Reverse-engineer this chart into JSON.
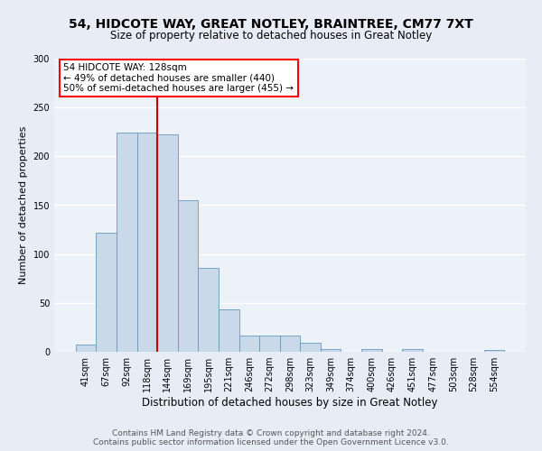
{
  "title1": "54, HIDCOTE WAY, GREAT NOTLEY, BRAINTREE, CM77 7XT",
  "title2": "Size of property relative to detached houses in Great Notley",
  "xlabel": "Distribution of detached houses by size in Great Notley",
  "ylabel": "Number of detached properties",
  "bin_labels": [
    "41sqm",
    "67sqm",
    "92sqm",
    "118sqm",
    "144sqm",
    "169sqm",
    "195sqm",
    "221sqm",
    "246sqm",
    "272sqm",
    "298sqm",
    "323sqm",
    "349sqm",
    "374sqm",
    "400sqm",
    "426sqm",
    "451sqm",
    "477sqm",
    "503sqm",
    "528sqm",
    "554sqm"
  ],
  "bar_heights": [
    7,
    122,
    224,
    224,
    222,
    155,
    86,
    43,
    17,
    17,
    17,
    9,
    3,
    0,
    3,
    0,
    3,
    0,
    0,
    0,
    2
  ],
  "bar_color": "#c9d9ea",
  "bar_edgecolor": "#6699bb",
  "vline_x": 3.5,
  "vline_color": "#cc0000",
  "annotation_text": "54 HIDCOTE WAY: 128sqm\n← 49% of detached houses are smaller (440)\n50% of semi-detached houses are larger (455) →",
  "annotation_box_color": "white",
  "annotation_box_edgecolor": "red",
  "ylim_max": 300,
  "yticks": [
    0,
    50,
    100,
    150,
    200,
    250,
    300
  ],
  "footnote": "Contains HM Land Registry data © Crown copyright and database right 2024.\nContains public sector information licensed under the Open Government Licence v3.0.",
  "bg_color": "#e8edf5",
  "plot_bg_color": "#edf2f8",
  "title1_fontsize": 10,
  "title2_fontsize": 8.5,
  "ylabel_fontsize": 8,
  "xlabel_fontsize": 8.5,
  "tick_fontsize": 7,
  "footnote_fontsize": 6.5,
  "annotation_fontsize": 7.5
}
